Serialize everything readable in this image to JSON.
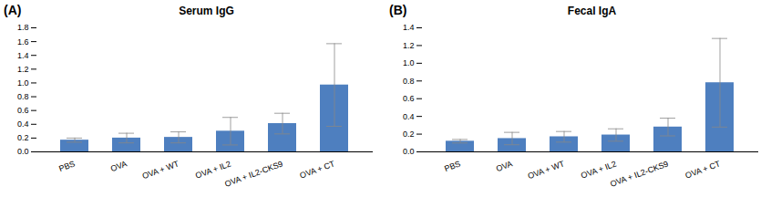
{
  "chart_data": [
    {
      "type": "bar",
      "title": "Serum IgG",
      "annotations": [
        "(A)"
      ],
      "categories": [
        "PBS",
        "OVA",
        "OVA + WT",
        "OVA + IL2",
        "OVA + IL2-CKS9",
        "OVA + CT"
      ],
      "values": [
        0.17,
        0.2,
        0.21,
        0.3,
        0.41,
        0.97
      ],
      "errors": [
        0.03,
        0.07,
        0.08,
        0.2,
        0.15,
        0.6
      ],
      "color": "#4e7fbf",
      "ylim": [
        0,
        1.8
      ],
      "yticks": [
        {
          "value": 0,
          "label": "0.0"
        },
        0.2,
        0.4,
        0.6,
        0.8,
        {
          "value": 1,
          "label": "1.0"
        },
        1.2,
        1.4,
        1.6,
        1.8
      ],
      "grid": false
    },
    {
      "type": "bar",
      "title": "Fecal IgA",
      "annotations": [
        "(B)"
      ],
      "categories": [
        "PBS",
        "OVA",
        "OVA + WT",
        "OVA + IL2",
        "OVA + IL2-CKS9",
        "OVA + CT"
      ],
      "values": [
        0.12,
        0.15,
        0.17,
        0.19,
        0.28,
        0.78
      ],
      "errors": [
        0.02,
        0.07,
        0.06,
        0.07,
        0.1,
        0.5
      ],
      "color": "#4e7fbf",
      "ylim": [
        0,
        1.4
      ],
      "yticks": [
        {
          "value": 0,
          "label": "0.0"
        },
        0.2,
        0.4,
        0.6,
        0.8,
        {
          "value": 1,
          "label": "1.0"
        },
        1.2,
        1.4
      ],
      "grid": false
    }
  ]
}
